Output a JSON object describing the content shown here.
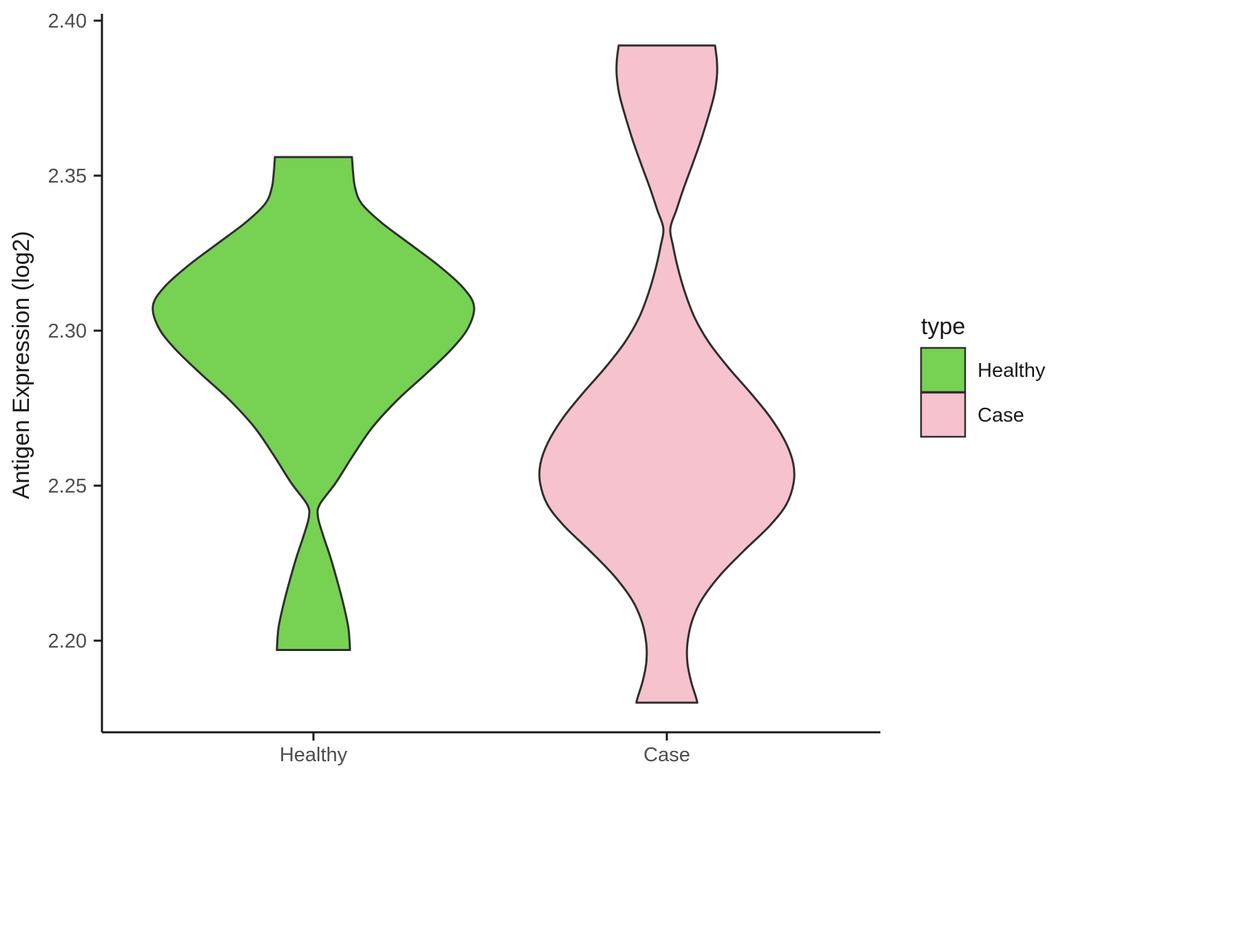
{
  "chart_data": {
    "type": "violin",
    "title": "",
    "xlabel": "",
    "ylabel": "Antigen Expression (log2)",
    "categories": [
      "Healthy",
      "Case"
    ],
    "ylim": [
      2.168,
      2.403
    ],
    "grid": false,
    "background": "#ffffff",
    "yticks": [
      {
        "value": 2.2,
        "label": "2.20"
      },
      {
        "value": 2.25,
        "label": "2.25"
      },
      {
        "value": 2.3,
        "label": "2.30"
      },
      {
        "value": 2.35,
        "label": "2.35"
      },
      {
        "value": 2.4,
        "label": "2.40"
      }
    ],
    "legend": {
      "title": "type",
      "position": "right",
      "entries": [
        {
          "label": "Healthy",
          "color": "#77D153"
        },
        {
          "label": "Case",
          "color": "#F5C2CD"
        }
      ]
    },
    "style": {
      "outline_color": "#2E2E2E",
      "axis_color": "#1A1A1A",
      "tick_label_color": "#4D4D4D"
    },
    "series": [
      {
        "name": "Healthy",
        "fill": "#77D153",
        "min": 2.197,
        "max": 2.356,
        "peak": 2.308,
        "profile": [
          [
            2.356,
            0.24
          ],
          [
            2.351,
            0.247
          ],
          [
            2.346,
            0.26
          ],
          [
            2.341,
            0.3
          ],
          [
            2.335,
            0.42
          ],
          [
            2.328,
            0.6
          ],
          [
            2.321,
            0.78
          ],
          [
            2.314,
            0.93
          ],
          [
            2.308,
            1.0
          ],
          [
            2.301,
            0.965
          ],
          [
            2.294,
            0.86
          ],
          [
            2.286,
            0.7
          ],
          [
            2.278,
            0.53
          ],
          [
            2.269,
            0.37
          ],
          [
            2.26,
            0.25
          ],
          [
            2.251,
            0.14
          ],
          [
            2.244,
            0.04
          ],
          [
            2.24,
            0.028
          ],
          [
            2.234,
            0.06
          ],
          [
            2.227,
            0.105
          ],
          [
            2.219,
            0.15
          ],
          [
            2.211,
            0.19
          ],
          [
            2.204,
            0.218
          ],
          [
            2.197,
            0.228
          ]
        ]
      },
      {
        "name": "Case",
        "fill": "#F5C2CD",
        "min": 2.18,
        "max": 2.392,
        "peak": 2.255,
        "profile": [
          [
            2.392,
            0.3
          ],
          [
            2.387,
            0.312
          ],
          [
            2.382,
            0.312
          ],
          [
            2.376,
            0.295
          ],
          [
            2.369,
            0.258
          ],
          [
            2.361,
            0.21
          ],
          [
            2.353,
            0.155
          ],
          [
            2.346,
            0.105
          ],
          [
            2.339,
            0.06
          ],
          [
            2.333,
            0.022
          ],
          [
            2.327,
            0.04
          ],
          [
            2.32,
            0.07
          ],
          [
            2.312,
            0.115
          ],
          [
            2.304,
            0.175
          ],
          [
            2.296,
            0.265
          ],
          [
            2.288,
            0.385
          ],
          [
            2.28,
            0.52
          ],
          [
            2.272,
            0.645
          ],
          [
            2.264,
            0.74
          ],
          [
            2.257,
            0.788
          ],
          [
            2.251,
            0.79
          ],
          [
            2.244,
            0.745
          ],
          [
            2.237,
            0.64
          ],
          [
            2.229,
            0.48
          ],
          [
            2.221,
            0.33
          ],
          [
            2.213,
            0.215
          ],
          [
            2.206,
            0.155
          ],
          [
            2.199,
            0.128
          ],
          [
            2.193,
            0.128
          ],
          [
            2.187,
            0.15
          ],
          [
            2.182,
            0.18
          ],
          [
            2.18,
            0.19
          ]
        ]
      }
    ]
  }
}
